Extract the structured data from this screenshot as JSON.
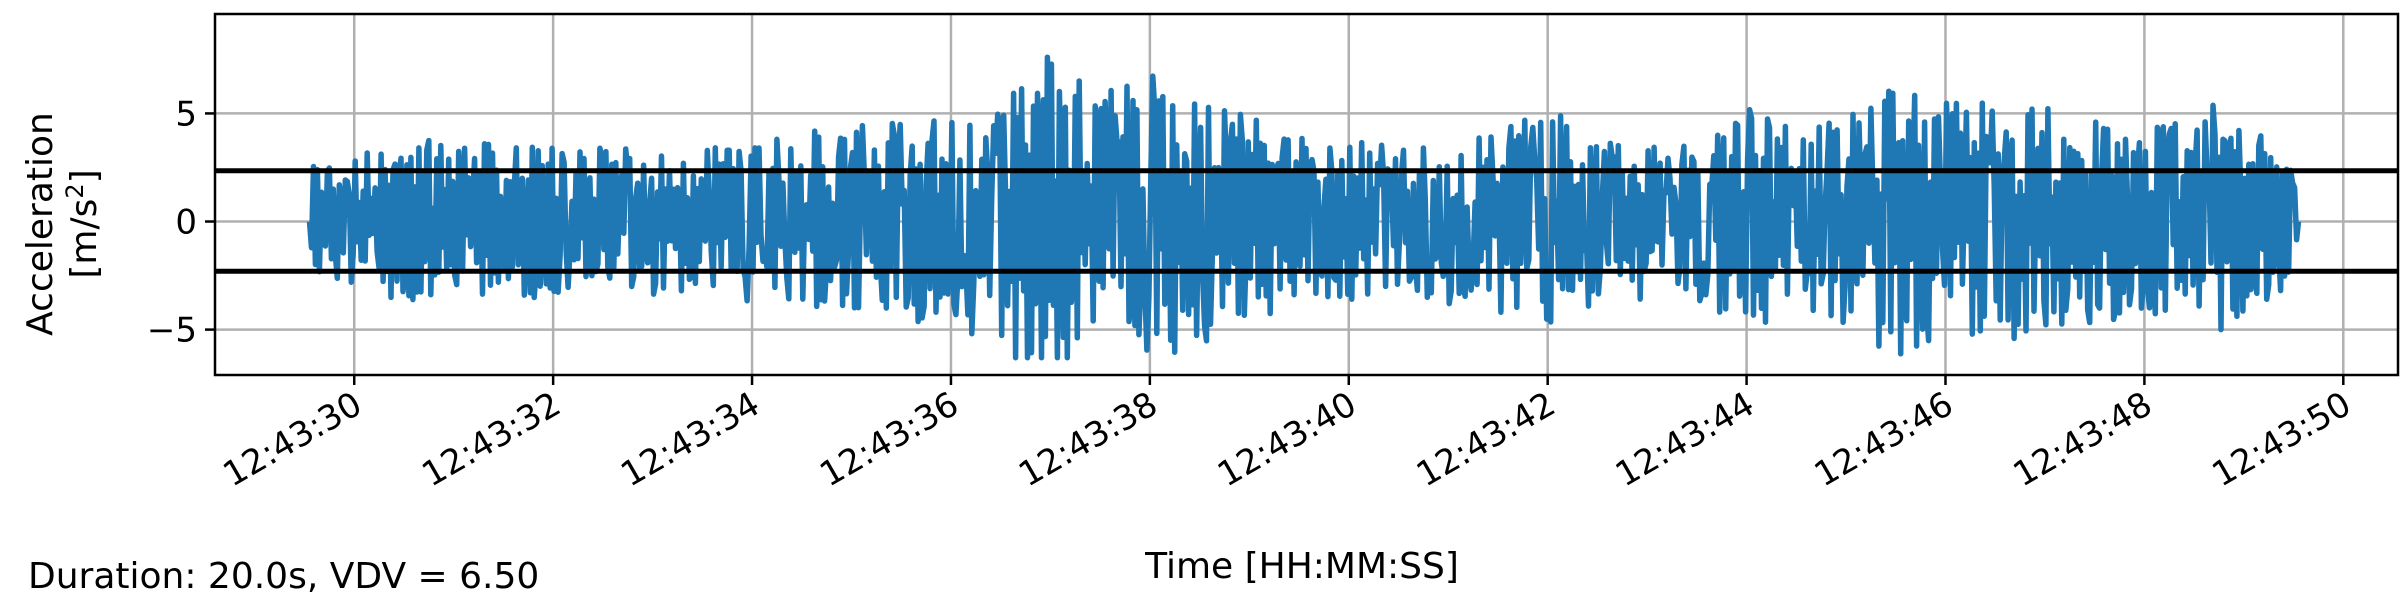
{
  "chart_data": {
    "type": "line",
    "xlabel": "Time [HH:MM:SS]",
    "ylabel_line1": "Acceleration",
    "ylabel_line2_prefix": "[m/s",
    "ylabel_line2_sup": "2",
    "ylabel_line2_suffix": "]",
    "x_ticks": [
      "12:43:30",
      "12:43:32",
      "12:43:34",
      "12:43:36",
      "12:43:38",
      "12:43:40",
      "12:43:42",
      "12:43:44",
      "12:43:46",
      "12:43:48",
      "12:43:50"
    ],
    "x_tick_seconds": [
      30,
      32,
      34,
      36,
      38,
      40,
      42,
      44,
      46,
      48,
      50
    ],
    "x_unit_note": "seconds past 12:43:00",
    "xlim_seconds": [
      28.6,
      50.55
    ],
    "y_ticks": [
      {
        "value": 5,
        "label": "5"
      },
      {
        "value": 0,
        "label": "0"
      },
      {
        "value": -5,
        "label": "−5"
      }
    ],
    "ylim": [
      -7.1,
      9.6
    ],
    "grid": true,
    "series": [
      {
        "color": "#1f77b4",
        "x_start_seconds": 29.55,
        "x_end_seconds": 49.55,
        "envelope_seconds": [
          29.55,
          30.5,
          31.5,
          32.5,
          33.5,
          34.5,
          35.5,
          36.5,
          36.8,
          37.5,
          38.0,
          38.5,
          39.5,
          40.5,
          41.5,
          42.0,
          42.5,
          43.5,
          44.0,
          44.5,
          45.5,
          46.0,
          46.5,
          47.5,
          48.0,
          48.7,
          49.55
        ],
        "envelope_amplitude": [
          2.5,
          3.8,
          3.6,
          3.4,
          3.4,
          4.2,
          4.6,
          5.6,
          8.6,
          6.4,
          7.0,
          5.8,
          4.0,
          3.6,
          4.2,
          5.6,
          3.6,
          3.8,
          5.6,
          4.4,
          6.2,
          5.6,
          5.8,
          4.8,
          4.6,
          5.4,
          3.0
        ],
        "peak_max": 8.9,
        "peak_min": -6.3
      }
    ],
    "hlines": [
      {
        "y": 2.35,
        "color": "#000000"
      },
      {
        "y": -2.3,
        "color": "#000000"
      }
    ]
  },
  "footer": {
    "text": "Duration: 20.0s, VDV = 6.50"
  }
}
